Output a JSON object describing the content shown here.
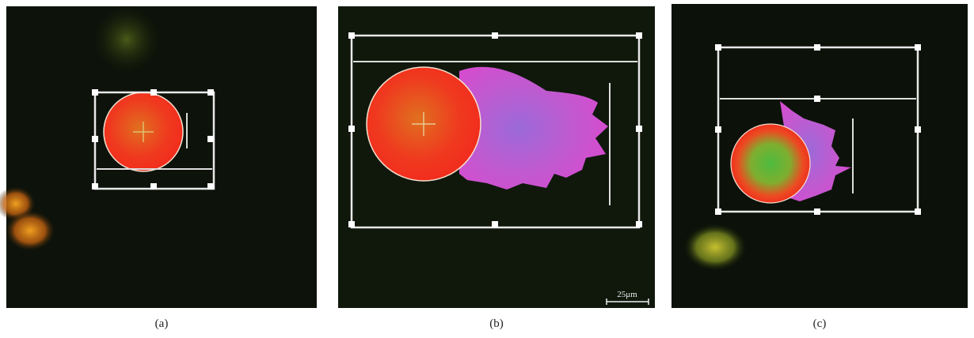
{
  "panels": [
    {
      "label": "(a)"
    },
    {
      "label": "(b)",
      "scale_bar": "25μm"
    },
    {
      "label": "(c)"
    }
  ]
}
